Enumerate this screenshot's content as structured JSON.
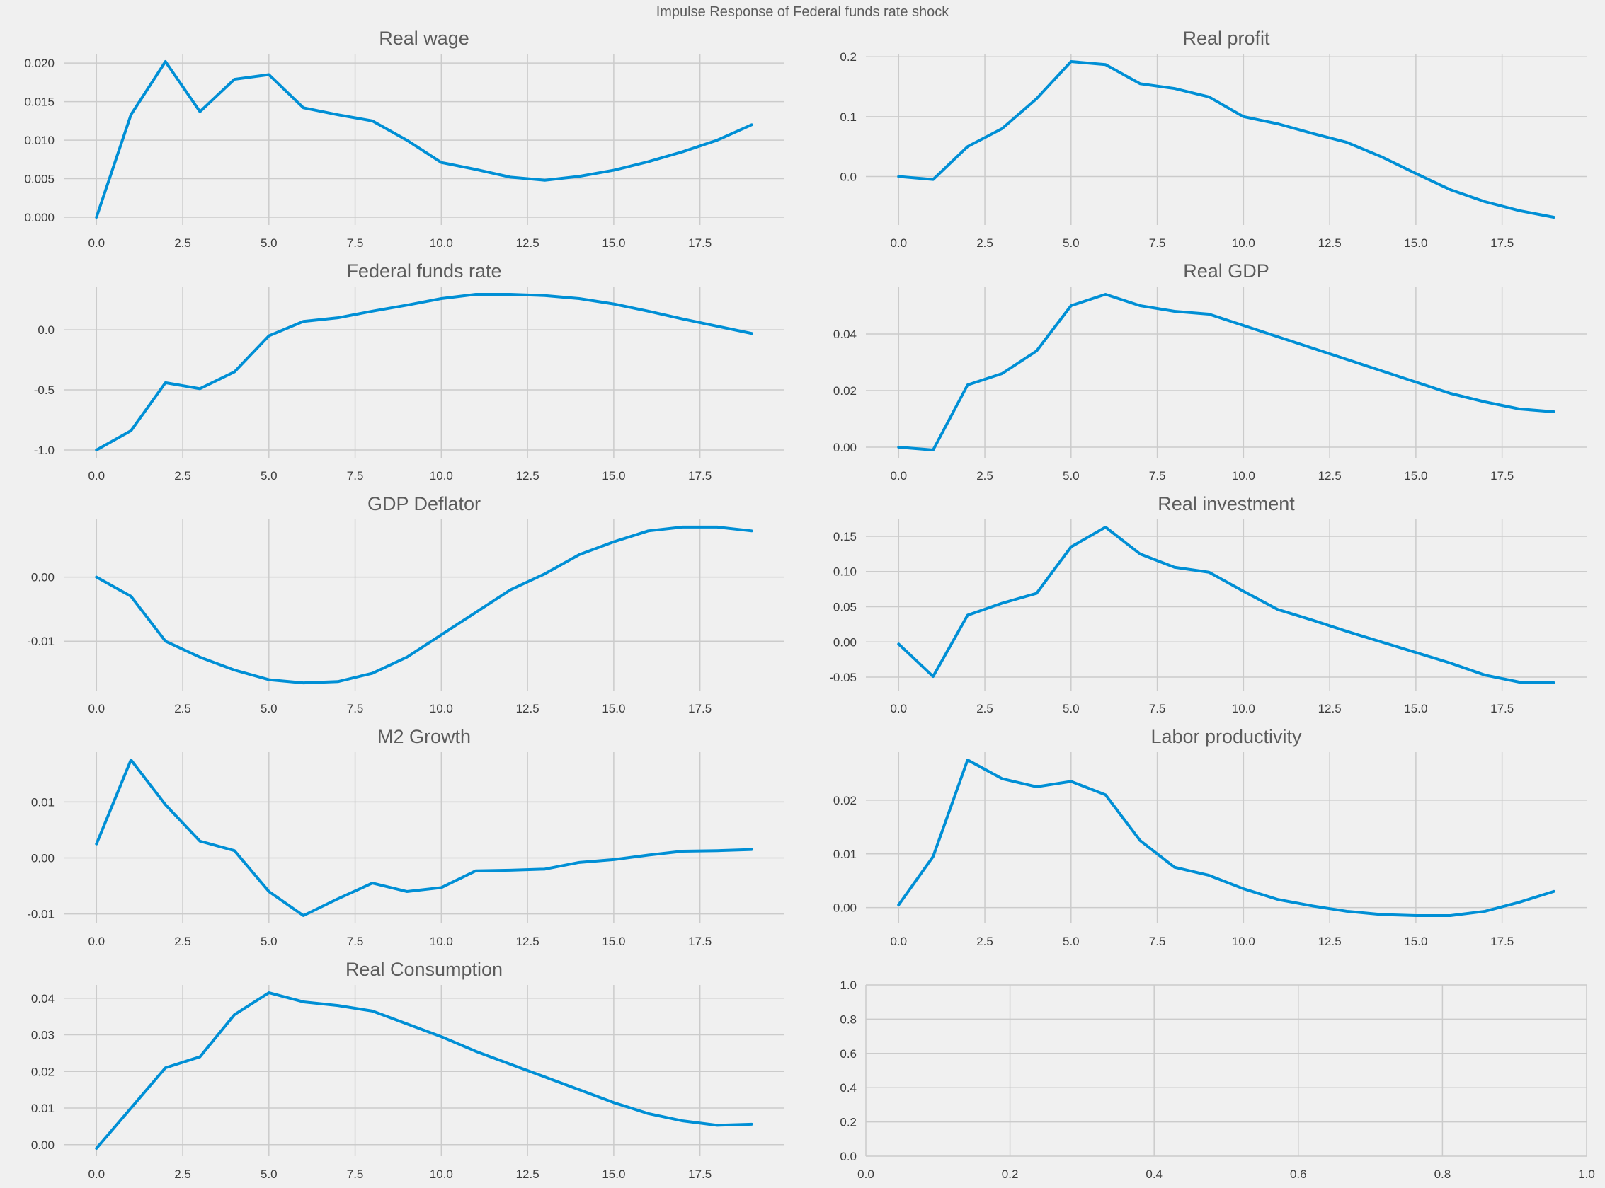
{
  "suptitle": "Impulse Response of Federal funds rate shock",
  "style": {
    "background": "#f0f0f0",
    "grid_color": "#cbcbcb",
    "line_color": "#008fd5",
    "tick_color": "#3c3c3c",
    "title_color": "#5c5c5c"
  },
  "chart_data": [
    {
      "type": "line",
      "title": "Real wage",
      "x": [
        0,
        1,
        2,
        3,
        4,
        5,
        6,
        7,
        8,
        9,
        10,
        11,
        12,
        13,
        14,
        15,
        16,
        17,
        18,
        19
      ],
      "values": [
        0.0,
        0.0133,
        0.0202,
        0.0137,
        0.0179,
        0.0185,
        0.0142,
        0.0133,
        0.0125,
        0.01,
        0.0071,
        0.0062,
        0.0052,
        0.0048,
        0.0053,
        0.0061,
        0.0072,
        0.0085,
        0.01,
        0.012
      ],
      "xlim": [
        -0.95,
        19.95
      ],
      "ylim": [
        -0.00101,
        0.02121
      ],
      "xticks": [
        0,
        2.5,
        5,
        7.5,
        10,
        12.5,
        15,
        17.5
      ],
      "xtick_labels": [
        "0.0",
        "2.5",
        "5.0",
        "7.5",
        "10.0",
        "12.5",
        "15.0",
        "17.5"
      ],
      "yticks": [
        0.0,
        0.005,
        0.01,
        0.015,
        0.02
      ],
      "ytick_labels": [
        "0.000",
        "0.005",
        "0.010",
        "0.015",
        "0.020"
      ],
      "grid": true
    },
    {
      "type": "line",
      "title": "Real profit",
      "x": [
        0,
        1,
        2,
        3,
        4,
        5,
        6,
        7,
        8,
        9,
        10,
        11,
        12,
        13,
        14,
        15,
        16,
        17,
        18,
        19
      ],
      "values": [
        0.0,
        -0.005,
        0.05,
        0.08,
        0.13,
        0.192,
        0.187,
        0.155,
        0.147,
        0.133,
        0.1,
        0.088,
        0.072,
        0.057,
        0.033,
        0.005,
        -0.022,
        -0.042,
        -0.057,
        -0.068
      ],
      "xlim": [
        -0.95,
        19.95
      ],
      "ylim": [
        -0.081,
        0.205
      ],
      "xticks": [
        0,
        2.5,
        5,
        7.5,
        10,
        12.5,
        15,
        17.5
      ],
      "xtick_labels": [
        "0.0",
        "2.5",
        "5.0",
        "7.5",
        "10.0",
        "12.5",
        "15.0",
        "17.5"
      ],
      "yticks": [
        0.0,
        0.1,
        0.2
      ],
      "ytick_labels": [
        "0.0",
        "0.1",
        "0.2"
      ],
      "grid": true
    },
    {
      "type": "line",
      "title": "Federal funds rate",
      "x": [
        0,
        1,
        2,
        3,
        4,
        5,
        6,
        7,
        8,
        9,
        10,
        11,
        12,
        13,
        14,
        15,
        16,
        17,
        18,
        19
      ],
      "values": [
        -1.0,
        -0.84,
        -0.44,
        -0.49,
        -0.35,
        -0.05,
        0.07,
        0.1,
        0.155,
        0.205,
        0.26,
        0.295,
        0.295,
        0.285,
        0.26,
        0.215,
        0.155,
        0.09,
        0.03,
        -0.03
      ],
      "xlim": [
        -0.95,
        19.95
      ],
      "ylim": [
        -1.065,
        0.36
      ],
      "xticks": [
        0,
        2.5,
        5,
        7.5,
        10,
        12.5,
        15,
        17.5
      ],
      "xtick_labels": [
        "0.0",
        "2.5",
        "5.0",
        "7.5",
        "10.0",
        "12.5",
        "15.0",
        "17.5"
      ],
      "yticks": [
        -1.0,
        -0.5,
        0.0
      ],
      "ytick_labels": [
        "-1.0",
        "-0.5",
        "0.0"
      ],
      "grid": true
    },
    {
      "type": "line",
      "title": "Real GDP",
      "x": [
        0,
        1,
        2,
        3,
        4,
        5,
        6,
        7,
        8,
        9,
        10,
        11,
        12,
        13,
        14,
        15,
        16,
        17,
        18,
        19
      ],
      "values": [
        0.0,
        -0.001,
        0.022,
        0.026,
        0.034,
        0.05,
        0.054,
        0.05,
        0.048,
        0.047,
        0.043,
        0.039,
        0.035,
        0.031,
        0.027,
        0.023,
        0.019,
        0.016,
        0.0135,
        0.0125
      ],
      "xlim": [
        -0.95,
        19.95
      ],
      "ylim": [
        -0.00375,
        0.05675
      ],
      "xticks": [
        0,
        2.5,
        5,
        7.5,
        10,
        12.5,
        15,
        17.5
      ],
      "xtick_labels": [
        "0.0",
        "2.5",
        "5.0",
        "7.5",
        "10.0",
        "12.5",
        "15.0",
        "17.5"
      ],
      "yticks": [
        0.0,
        0.02,
        0.04
      ],
      "ytick_labels": [
        "0.00",
        "0.02",
        "0.04"
      ],
      "grid": true
    },
    {
      "type": "line",
      "title": "GDP Deflator",
      "x": [
        0,
        1,
        2,
        3,
        4,
        5,
        6,
        7,
        8,
        9,
        10,
        11,
        12,
        13,
        14,
        15,
        16,
        17,
        18,
        19
      ],
      "values": [
        0.0,
        -0.003,
        -0.01,
        -0.0125,
        -0.0145,
        -0.016,
        -0.0165,
        -0.0163,
        -0.015,
        -0.0125,
        -0.009,
        -0.0055,
        -0.002,
        0.0005,
        0.0035,
        0.0055,
        0.0072,
        0.0078,
        0.0078,
        0.0072
      ],
      "xlim": [
        -0.95,
        19.95
      ],
      "ylim": [
        -0.0177,
        0.009
      ],
      "xticks": [
        0,
        2.5,
        5,
        7.5,
        10,
        12.5,
        15,
        17.5
      ],
      "xtick_labels": [
        "0.0",
        "2.5",
        "5.0",
        "7.5",
        "10.0",
        "12.5",
        "15.0",
        "17.5"
      ],
      "yticks": [
        -0.01,
        0.0
      ],
      "ytick_labels": [
        "-0.01",
        "0.00"
      ],
      "grid": true
    },
    {
      "type": "line",
      "title": "Real investment",
      "x": [
        0,
        1,
        2,
        3,
        4,
        5,
        6,
        7,
        8,
        9,
        10,
        11,
        12,
        13,
        14,
        15,
        16,
        17,
        18,
        19
      ],
      "values": [
        -0.003,
        -0.049,
        0.038,
        0.055,
        0.069,
        0.135,
        0.163,
        0.125,
        0.106,
        0.099,
        0.072,
        0.046,
        0.031,
        0.015,
        0.0,
        -0.015,
        -0.03,
        -0.047,
        -0.057,
        -0.058
      ],
      "xlim": [
        -0.95,
        19.95
      ],
      "ylim": [
        -0.06905,
        0.17405
      ],
      "xticks": [
        0,
        2.5,
        5,
        7.5,
        10,
        12.5,
        15,
        17.5
      ],
      "xtick_labels": [
        "0.0",
        "2.5",
        "5.0",
        "7.5",
        "10.0",
        "12.5",
        "15.0",
        "17.5"
      ],
      "yticks": [
        -0.05,
        0.0,
        0.05,
        0.1,
        0.15
      ],
      "ytick_labels": [
        "-0.05",
        "0.00",
        "0.05",
        "0.10",
        "0.15"
      ],
      "grid": true
    },
    {
      "type": "line",
      "title": "M2 Growth",
      "x": [
        0,
        1,
        2,
        3,
        4,
        5,
        6,
        7,
        8,
        9,
        10,
        11,
        12,
        13,
        14,
        15,
        16,
        17,
        18,
        19
      ],
      "values": [
        0.0025,
        0.0175,
        0.0095,
        0.003,
        0.0013,
        -0.006,
        -0.0103,
        -0.0073,
        -0.0045,
        -0.006,
        -0.0053,
        -0.0023,
        -0.0022,
        -0.002,
        -0.0008,
        -0.0003,
        0.0005,
        0.0012,
        0.0013,
        0.0015
      ],
      "xlim": [
        -0.95,
        19.95
      ],
      "ylim": [
        -0.01169,
        0.01889
      ],
      "xticks": [
        0,
        2.5,
        5,
        7.5,
        10,
        12.5,
        15,
        17.5
      ],
      "xtick_labels": [
        "0.0",
        "2.5",
        "5.0",
        "7.5",
        "10.0",
        "12.5",
        "15.0",
        "17.5"
      ],
      "yticks": [
        -0.01,
        0.0,
        0.01
      ],
      "ytick_labels": [
        "-0.01",
        "0.00",
        "0.01"
      ],
      "grid": true
    },
    {
      "type": "line",
      "title": "Labor productivity",
      "x": [
        0,
        1,
        2,
        3,
        4,
        5,
        6,
        7,
        8,
        9,
        10,
        11,
        12,
        13,
        14,
        15,
        16,
        17,
        18,
        19
      ],
      "values": [
        0.0005,
        0.0095,
        0.0275,
        0.024,
        0.0225,
        0.0235,
        0.021,
        0.0125,
        0.0075,
        0.006,
        0.0035,
        0.0015,
        0.0003,
        -0.0007,
        -0.0013,
        -0.0015,
        -0.0015,
        -0.0007,
        0.001,
        0.003
      ],
      "xlim": [
        -0.95,
        19.95
      ],
      "ylim": [
        -0.00295,
        0.02895
      ],
      "xticks": [
        0,
        2.5,
        5,
        7.5,
        10,
        12.5,
        15,
        17.5
      ],
      "xtick_labels": [
        "0.0",
        "2.5",
        "5.0",
        "7.5",
        "10.0",
        "12.5",
        "15.0",
        "17.5"
      ],
      "yticks": [
        0.0,
        0.01,
        0.02
      ],
      "ytick_labels": [
        "0.00",
        "0.01",
        "0.02"
      ],
      "grid": true
    },
    {
      "type": "line",
      "title": "Real Consumption",
      "x": [
        0,
        1,
        2,
        3,
        4,
        5,
        6,
        7,
        8,
        9,
        10,
        11,
        12,
        13,
        14,
        15,
        16,
        17,
        18,
        19
      ],
      "values": [
        -0.001,
        0.01,
        0.021,
        0.024,
        0.0355,
        0.0415,
        0.039,
        0.038,
        0.0365,
        0.033,
        0.0295,
        0.0255,
        0.022,
        0.0185,
        0.015,
        0.0115,
        0.0085,
        0.0065,
        0.0053,
        0.0056
      ],
      "xlim": [
        -0.95,
        19.95
      ],
      "ylim": [
        -0.00313,
        0.04363
      ],
      "xticks": [
        0,
        2.5,
        5,
        7.5,
        10,
        12.5,
        15,
        17.5
      ],
      "xtick_labels": [
        "0.0",
        "2.5",
        "5.0",
        "7.5",
        "10.0",
        "12.5",
        "15.0",
        "17.5"
      ],
      "yticks": [
        0.0,
        0.01,
        0.02,
        0.03,
        0.04
      ],
      "ytick_labels": [
        "0.00",
        "0.01",
        "0.02",
        "0.03",
        "0.04"
      ],
      "grid": true
    },
    {
      "type": "line",
      "title": "",
      "x": [],
      "values": [],
      "xlim": [
        0,
        1
      ],
      "ylim": [
        0,
        1
      ],
      "xticks": [
        0,
        0.2,
        0.4,
        0.6,
        0.8,
        1.0
      ],
      "xtick_labels": [
        "0.0",
        "0.2",
        "0.4",
        "0.6",
        "0.8",
        "1.0"
      ],
      "yticks": [
        0,
        0.2,
        0.4,
        0.6,
        0.8,
        1.0
      ],
      "ytick_labels": [
        "0.0",
        "0.2",
        "0.4",
        "0.6",
        "0.8",
        "1.0"
      ],
      "grid": true
    }
  ]
}
